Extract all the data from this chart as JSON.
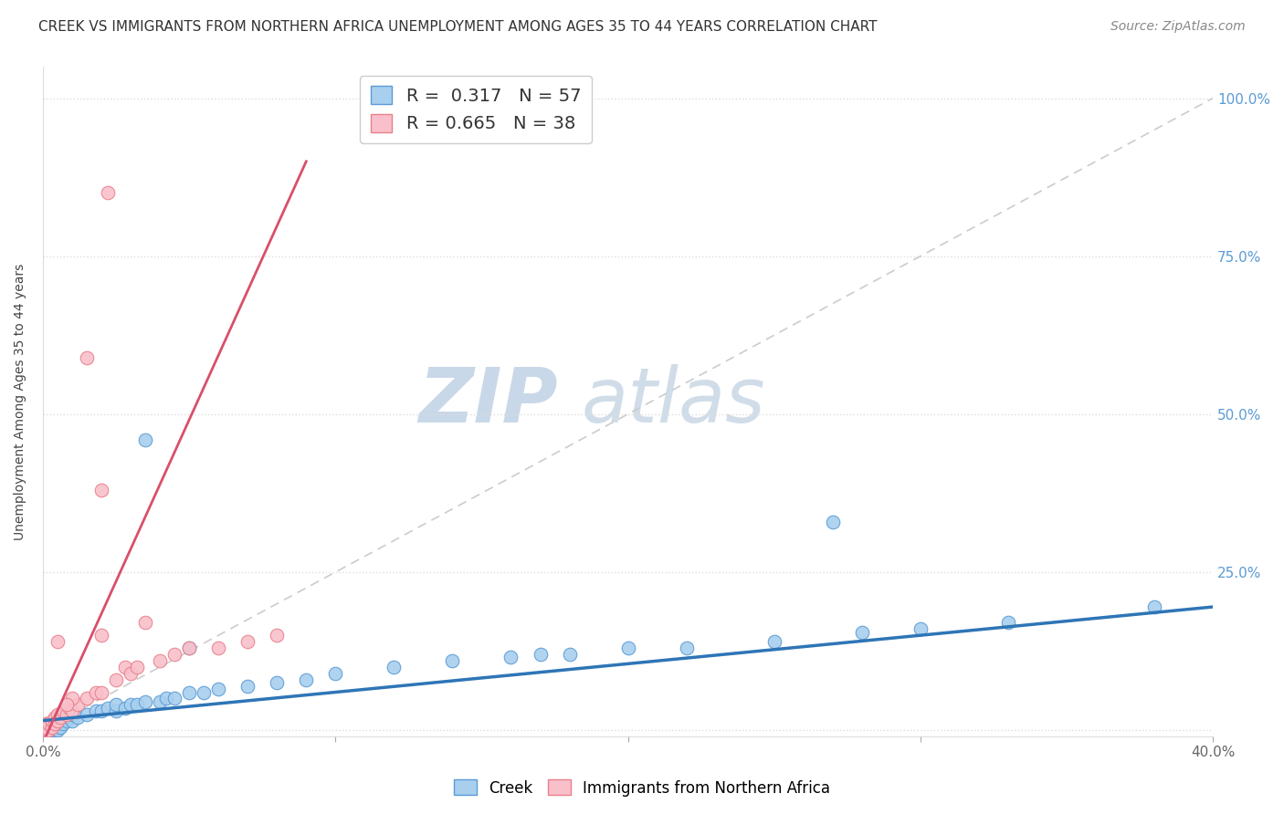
{
  "title": "CREEK VS IMMIGRANTS FROM NORTHERN AFRICA UNEMPLOYMENT AMONG AGES 35 TO 44 YEARS CORRELATION CHART",
  "source": "Source: ZipAtlas.com",
  "ylabel": "Unemployment Among Ages 35 to 44 years",
  "xlim": [
    0.0,
    0.4
  ],
  "ylim": [
    -0.01,
    1.05
  ],
  "xticks": [
    0.0,
    0.1,
    0.2,
    0.3,
    0.4
  ],
  "xticklabels": [
    "0.0%",
    "",
    "",
    "",
    "40.0%"
  ],
  "yticks": [
    0.0,
    0.25,
    0.5,
    0.75,
    1.0
  ],
  "yticklabels_right": [
    "",
    "25.0%",
    "50.0%",
    "75.0%",
    "100.0%"
  ],
  "creek_color": "#A8CFEE",
  "creek_edge_color": "#5B9BD5",
  "immigrant_color": "#F9C0CB",
  "immigrant_edge_color": "#E8808A",
  "creek_R": 0.317,
  "creek_N": 57,
  "immigrant_R": 0.665,
  "immigrant_N": 38,
  "creek_trend_color": "#2E75B6",
  "immigrant_trend_color": "#D94F6A",
  "ref_line_color": "#CCCCCC",
  "watermark_zip": "ZIP",
  "watermark_atlas": "atlas",
  "watermark_color": "#C8D8E8",
  "title_fontsize": 11,
  "source_fontsize": 10,
  "axis_label_fontsize": 10,
  "tick_fontsize": 11,
  "legend_fontsize": 14,
  "background_color": "#FFFFFF",
  "grid_color": "#DDDDDD",
  "right_ytick_color": "#5B9BD5",
  "creek_x": [
    0.001,
    0.001,
    0.002,
    0.002,
    0.003,
    0.003,
    0.003,
    0.004,
    0.004,
    0.004,
    0.005,
    0.005,
    0.005,
    0.006,
    0.006,
    0.007,
    0.007,
    0.008,
    0.009,
    0.01,
    0.01,
    0.012,
    0.015,
    0.018,
    0.02,
    0.022,
    0.025,
    0.025,
    0.028,
    0.03,
    0.032,
    0.035,
    0.04,
    0.042,
    0.045,
    0.05,
    0.055,
    0.06,
    0.07,
    0.08,
    0.09,
    0.1,
    0.12,
    0.14,
    0.16,
    0.17,
    0.18,
    0.2,
    0.22,
    0.25,
    0.28,
    0.3,
    0.33,
    0.035,
    0.05,
    0.27,
    0.38
  ],
  "creek_y": [
    0.0,
    0.0,
    0.0,
    0.01,
    0.0,
    0.005,
    0.01,
    0.0,
    0.008,
    0.015,
    0.0,
    0.01,
    0.02,
    0.005,
    0.015,
    0.01,
    0.02,
    0.015,
    0.02,
    0.015,
    0.025,
    0.02,
    0.025,
    0.03,
    0.03,
    0.035,
    0.03,
    0.04,
    0.035,
    0.04,
    0.04,
    0.045,
    0.045,
    0.05,
    0.05,
    0.06,
    0.06,
    0.065,
    0.07,
    0.075,
    0.08,
    0.09,
    0.1,
    0.11,
    0.115,
    0.12,
    0.12,
    0.13,
    0.13,
    0.14,
    0.155,
    0.16,
    0.17,
    0.46,
    0.13,
    0.33,
    0.195
  ],
  "immigrant_x": [
    0.001,
    0.001,
    0.001,
    0.002,
    0.002,
    0.003,
    0.003,
    0.004,
    0.004,
    0.005,
    0.005,
    0.006,
    0.007,
    0.008,
    0.009,
    0.01,
    0.012,
    0.015,
    0.018,
    0.02,
    0.02,
    0.025,
    0.028,
    0.03,
    0.032,
    0.035,
    0.04,
    0.045,
    0.05,
    0.06,
    0.07,
    0.08,
    0.02,
    0.005,
    0.015,
    0.022,
    0.01,
    0.008
  ],
  "immigrant_y": [
    0.0,
    0.005,
    0.01,
    0.0,
    0.01,
    0.005,
    0.015,
    0.01,
    0.02,
    0.015,
    0.025,
    0.02,
    0.03,
    0.025,
    0.035,
    0.03,
    0.04,
    0.05,
    0.06,
    0.06,
    0.15,
    0.08,
    0.1,
    0.09,
    0.1,
    0.17,
    0.11,
    0.12,
    0.13,
    0.13,
    0.14,
    0.15,
    0.38,
    0.14,
    0.59,
    0.85,
    0.05,
    0.04
  ],
  "creek_trend_x0": 0.0,
  "creek_trend_y0": 0.015,
  "creek_trend_x1": 0.4,
  "creek_trend_y1": 0.195,
  "immig_trend_x0": 0.0,
  "immig_trend_y0": -0.02,
  "immig_trend_x1": 0.09,
  "immig_trend_y1": 0.9
}
